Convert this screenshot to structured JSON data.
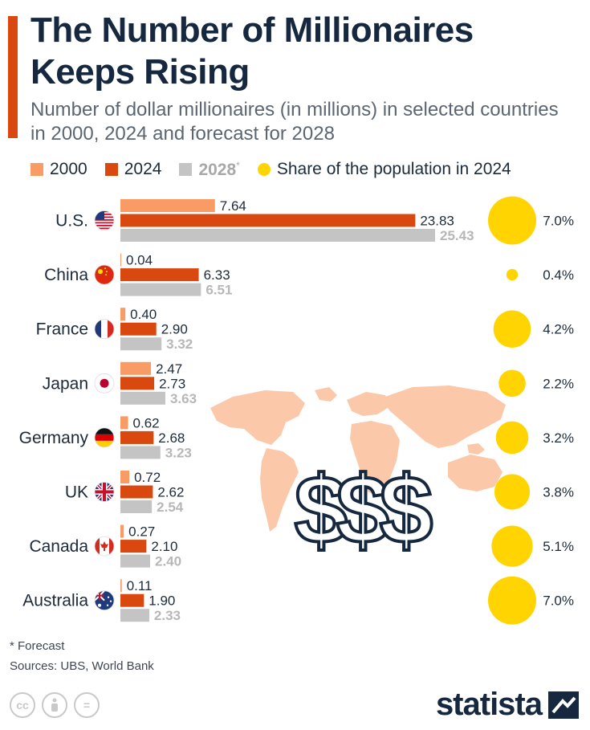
{
  "header": {
    "title_line1": "The Number of Millionaires",
    "title_line2": "Keeps Rising",
    "subtitle": "Number of dollar millionaires (in millions) in selected countries in 2000, 2024 and forecast for 2028"
  },
  "legend": {
    "items": [
      {
        "label": "2000",
        "color": "#f99b65"
      },
      {
        "label": "2024",
        "color": "#d9480f"
      },
      {
        "label": "2028",
        "suffix": "*",
        "color": "#c4c4c4"
      },
      {
        "label": "Share of the population in 2024",
        "color": "#ffd400"
      }
    ]
  },
  "chart_data": {
    "type": "bar",
    "orientation": "horizontal",
    "title": "The Number of Millionaires Keeps Rising",
    "subtitle": "Number of dollar millionaires (in millions) in selected countries in 2000, 2024 and forecast for 2028",
    "unit": "millions",
    "categories": [
      "U.S.",
      "China",
      "France",
      "Japan",
      "Germany",
      "UK",
      "Canada",
      "Australia"
    ],
    "series": [
      {
        "name": "2000",
        "color": "#f99b65",
        "values": [
          7.64,
          0.04,
          0.4,
          2.47,
          0.62,
          0.72,
          0.27,
          0.11
        ],
        "labels": [
          "7.64",
          "0.04",
          "0.40",
          "2.47",
          "0.62",
          "0.72",
          "0.27",
          "0.11"
        ]
      },
      {
        "name": "2024",
        "color": "#d9480f",
        "values": [
          23.83,
          6.33,
          2.9,
          2.73,
          2.68,
          2.62,
          2.1,
          1.9
        ],
        "labels": [
          "23.83",
          "6.33",
          "2.90",
          "2.73",
          "2.68",
          "2.62",
          "2.10",
          "1.90"
        ]
      },
      {
        "name": "2028*",
        "color": "#c4c4c4",
        "values": [
          25.43,
          6.51,
          3.32,
          3.63,
          3.23,
          2.54,
          2.4,
          2.33
        ],
        "labels": [
          "25.43",
          "6.51",
          "3.32",
          "3.63",
          "3.23",
          "2.54",
          "2.40",
          "2.33"
        ]
      }
    ],
    "population_share_2024": {
      "name": "Share of the population in 2024",
      "color": "#ffd400",
      "values": [
        7.0,
        0.4,
        4.2,
        2.2,
        3.2,
        3.8,
        5.1,
        7.0
      ],
      "labels": [
        "7.0%",
        "0.4%",
        "4.2%",
        "2.2%",
        "3.2%",
        "3.8%",
        "5.1%",
        "7.0%"
      ]
    },
    "xlim": [
      0,
      25.43
    ],
    "axes_visible": false,
    "grid": false
  },
  "footer": {
    "footnote": "* Forecast",
    "sources": "Sources: UBS, World Bank",
    "brand": "statista"
  }
}
